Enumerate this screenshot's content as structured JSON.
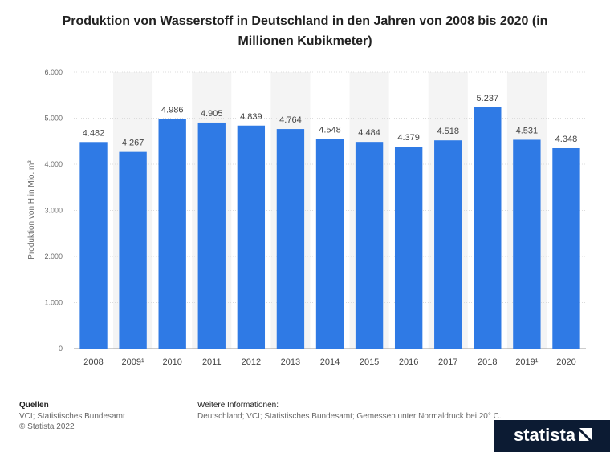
{
  "chart_data": {
    "type": "bar",
    "title": "Produktion von Wasserstoff in Deutschland in den Jahren von 2008 bis 2020 (in Millionen Kubikmeter)",
    "y_label": "Produktion von H in Mio. m³",
    "categories": [
      "2008",
      "2009¹",
      "2010",
      "2011",
      "2012",
      "2013",
      "2014",
      "2015",
      "2016",
      "2017",
      "2018",
      "2019¹",
      "2020"
    ],
    "values": [
      4482,
      4267,
      4986,
      4905,
      4839,
      4764,
      4548,
      4484,
      4379,
      4518,
      5237,
      4531,
      4348
    ],
    "value_labels": [
      "4.482",
      "4.267",
      "4.986",
      "4.905",
      "4.839",
      "4.764",
      "4.548",
      "4.484",
      "4.379",
      "4.518",
      "5.237",
      "4.531",
      "4.348"
    ],
    "color": "#2f7ae5",
    "ylim": [
      0,
      6000
    ],
    "yticks": [
      0,
      {
        "value": 1000,
        "label": "1.000"
      },
      {
        "value": 2000,
        "label": "2.000"
      },
      {
        "value": 3000,
        "label": "3.000"
      },
      {
        "value": 4000,
        "label": "4.000"
      },
      {
        "value": 5000,
        "label": "5.000"
      },
      {
        "value": 6000,
        "label": "6.000"
      }
    ],
    "grid": true
  },
  "footer": {
    "sources_title": "Quellen",
    "sources": "VCI; Statistisches Bundesamt",
    "copyright": "© Statista 2022",
    "info_title": "Weitere Informationen:",
    "info": "Deutschland; VCI; Statistisches Bundesamt; Gemessen unter Normaldruck bei 20° C.",
    "logo": "statista"
  }
}
